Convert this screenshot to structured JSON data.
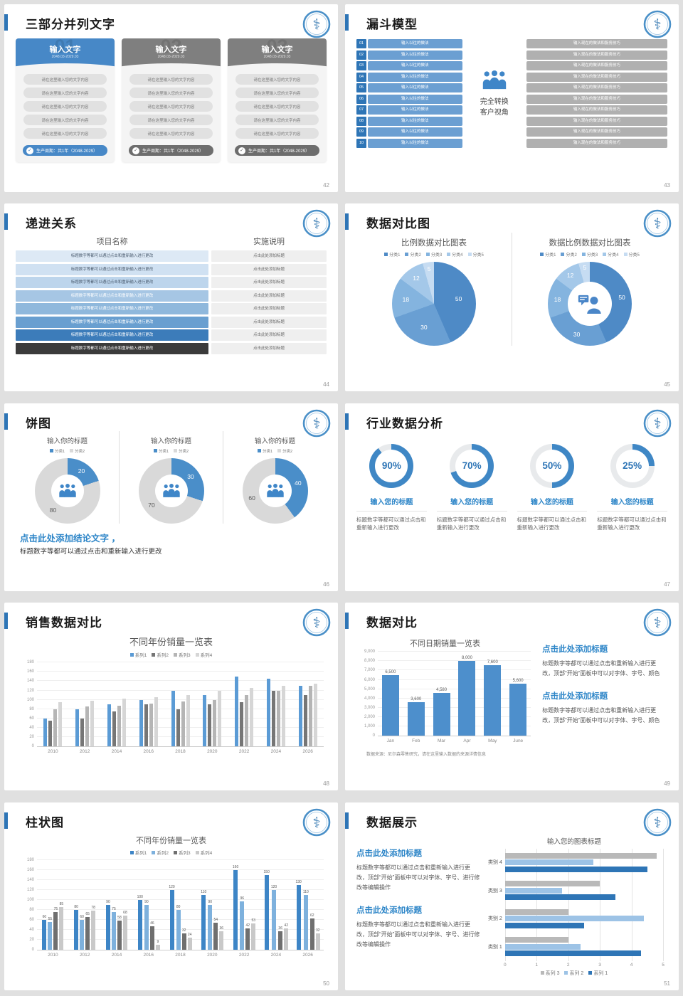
{
  "page": {
    "background": "#e0e0e0",
    "logo_icon": "medical-caduceus-emblem",
    "logo_symbol": "⚕",
    "accent_color": "#2e75b6"
  },
  "slides": {
    "s42": {
      "page_num": "42",
      "title": "三部分并列文字",
      "cards": [
        {
          "num": "01",
          "header": "输入文字",
          "date": "2048.03-2029.03",
          "accent": "#4788c7",
          "foot_accent": "#4788c7",
          "items": [
            "请在这里输入您的文字内容",
            "请在这里输入您的文字内容",
            "请在这里输入您的文字内容",
            "请在这里输入您的文字内容",
            "请在这里输入您的文字内容"
          ],
          "footer": "生产周期：共1年（2048-2029）"
        },
        {
          "num": "02",
          "header": "输入文字",
          "date": "2048.03-2029.03",
          "accent": "#7f7f7f",
          "foot_accent": "#6d6d6d",
          "items": [
            "请在这里输入您的文字内容",
            "请在这里输入您的文字内容",
            "请在这里输入您的文字内容",
            "请在这里输入您的文字内容",
            "请在这里输入您的文字内容"
          ],
          "footer": "生产周期：共1年（2048-2029）"
        },
        {
          "num": "03",
          "header": "输入文字",
          "date": "2048.03-2029.03",
          "accent": "#7f7f7f",
          "foot_accent": "#6d6d6d",
          "items": [
            "请在这里输入您的文字内容",
            "请在这里输入您的文字内容",
            "请在这里输入您的文字内容",
            "请在这里输入您的文字内容",
            "请在这里输入您的文字内容"
          ],
          "footer": "生产周期：共1年（2048-2029）"
        }
      ]
    },
    "s43": {
      "page_num": "43",
      "title": "漏斗模型",
      "left_items": [
        {
          "num": "01",
          "text": "输入以往的做法"
        },
        {
          "num": "02",
          "text": "输入以往的做法"
        },
        {
          "num": "03",
          "text": "输入以往的做法"
        },
        {
          "num": "04",
          "text": "输入以往的做法"
        },
        {
          "num": "05",
          "text": "输入以往的做法"
        },
        {
          "num": "06",
          "text": "输入以往的做法"
        },
        {
          "num": "07",
          "text": "输入以往的做法"
        },
        {
          "num": "08",
          "text": "输入以往的做法"
        },
        {
          "num": "09",
          "text": "输入以往的做法"
        },
        {
          "num": "10",
          "text": "输入以往的做法"
        }
      ],
      "center_line1": "完全转换",
      "center_line2": "客户视角",
      "center_icon": "people-group-icon",
      "right_items": [
        "输入现在的做法和服务技巧",
        "输入现在的做法和服务技巧",
        "输入现在的做法和服务技巧",
        "输入现在的做法和服务技巧",
        "输入现在的做法和服务技巧",
        "输入现在的做法和服务技巧",
        "输入现在的做法和服务技巧",
        "输入现在的做法和服务技巧",
        "输入现在的做法和服务技巧",
        "输入现在的做法和服务技巧"
      ]
    },
    "s44": {
      "page_num": "44",
      "title": "递进关系",
      "col1_header": "项目名称",
      "col2_header": "实施说明",
      "row_left_text": "标题数字等都可以通过点击和重新输入进行更改",
      "row_right_text": "点击此处添加标题",
      "row_colors": [
        "#dde9f5",
        "#d0e1f2",
        "#bdd5ec",
        "#a6c6e4",
        "#8fb8dc",
        "#699fd0",
        "#3c7cba",
        "#3b3b3b"
      ],
      "row_count": 8
    },
    "s45": {
      "page_num": "45",
      "title": "数据对比图",
      "center_icon": "customer-chat-icon"
    },
    "s46": {
      "page_num": "46",
      "title": "饼图",
      "conclusion_blue": "点击此处添加结论文字 ，",
      "conclusion_black": "标题数字等都可以通过点击和重新输入进行更改",
      "center_icon": "people-group-icon"
    },
    "s47": {
      "page_num": "47",
      "title": "行业数据分析",
      "items": [
        {
          "pct": "90%",
          "label": "输入您的标题",
          "desc": "标题数字等都可以通过点击和重新输入进行更改"
        },
        {
          "pct": "70%",
          "label": "输入您的标题",
          "desc": "标题数字等都可以通过点击和重新输入进行更改"
        },
        {
          "pct": "50%",
          "label": "输入您的标题",
          "desc": "标题数字等都可以通过点击和重新输入进行更改"
        },
        {
          "pct": "25%",
          "label": "输入您的标题",
          "desc": "标题数字等都可以通过点击和重新输入进行更改"
        }
      ]
    },
    "s48": {
      "page_num": "48",
      "title": "销售数据对比"
    },
    "s49": {
      "page_num": "49",
      "title": "数据对比",
      "source_note": "数据来源：尼尔森零售研究，请在这里输入数据的来源详情信息",
      "blocks": [
        {
          "heading": "点击此处添加标题",
          "body": "标题数字等都可以通过点击和重新输入进行更改，顶部“开始”面板中可以对字体、字号、颜色"
        },
        {
          "heading": "点击此处添加标题",
          "body": "标题数字等都可以通过点击和重新输入进行更改，顶部“开始”面板中可以对字体、字号、颜色"
        }
      ]
    },
    "s50": {
      "page_num": "50",
      "title": "柱状图"
    },
    "s51": {
      "page_num": "51",
      "title": "数据展示",
      "blocks": [
        {
          "heading": "点击此处添加标题",
          "body": "标题数字等都可以通过点击和重新输入进行更改，顶部“开始”面板中可以对字体、字号、进行修改等编辑操作"
        },
        {
          "heading": "点击此处添加标题",
          "body": "标题数字等都可以通过点击和重新输入进行更改，顶部“开始”面板中可以对字体、字号、进行修改等编辑操作"
        }
      ]
    }
  },
  "chart_data": [
    {
      "id": "s45-pie",
      "type": "pie",
      "title": "比例数据对比图表",
      "legend": [
        "分类1",
        "分类2",
        "分类3",
        "分类4",
        "分类5"
      ],
      "values": [
        50,
        30,
        18,
        12,
        5
      ],
      "colors": [
        "#4e8ac6",
        "#699fd3",
        "#84b4df",
        "#a4c8e9",
        "#c6dcf2"
      ],
      "legend_position": "top"
    },
    {
      "id": "s45-donut",
      "type": "pie",
      "subtype": "donut",
      "title": "数据比例数据对比图表",
      "legend": [
        "分类1",
        "分类2",
        "分类3",
        "分类4",
        "分类5"
      ],
      "values": [
        50,
        30,
        18,
        12,
        5
      ],
      "colors": [
        "#4e8ac6",
        "#699fd3",
        "#84b4df",
        "#a4c8e9",
        "#c6dcf2"
      ],
      "center_icon": "customer-chat-icon",
      "legend_position": "top"
    },
    {
      "id": "s46-donuts",
      "type": "pie",
      "subtype": "donut",
      "title": "输入你的标题",
      "legend": [
        "分类1",
        "分类2"
      ],
      "colors": [
        "#4a8ec9",
        "#d9d9d9"
      ],
      "charts": [
        [
          20,
          80
        ],
        [
          30,
          70
        ],
        [
          40,
          60
        ]
      ],
      "center_icon": "people-group-icon"
    },
    {
      "id": "s47-gauges",
      "type": "pie",
      "subtype": "gauge",
      "values": [
        90,
        70,
        50,
        25
      ],
      "unit": "%",
      "colors": [
        "#3f87c5",
        "#e8eaec"
      ]
    },
    {
      "id": "s48",
      "type": "bar",
      "title": "不同年份销量一览表",
      "categories": [
        "2010",
        "2012",
        "2014",
        "2016",
        "2018",
        "2020",
        "2022",
        "2024",
        "2026"
      ],
      "series": [
        {
          "name": "系列1",
          "color": "#5b9bd5",
          "values": [
            60,
            80,
            90,
            100,
            120,
            110,
            150,
            145,
            130
          ]
        },
        {
          "name": "系列2",
          "color": "#767676",
          "values": [
            55,
            60,
            75,
            90,
            80,
            90,
            95,
            120,
            110
          ]
        },
        {
          "name": "系列3",
          "color": "#b5b5b5",
          "values": [
            80,
            85,
            88,
            92,
            97,
            100,
            110,
            120,
            130
          ]
        },
        {
          "name": "系列4",
          "color": "#d6d6d6",
          "values": [
            95,
            98,
            102,
            105,
            110,
            120,
            125,
            130,
            135
          ]
        }
      ],
      "ylim": [
        0,
        180
      ],
      "ystep": 20,
      "grid": true,
      "legend_position": "top"
    },
    {
      "id": "s49",
      "type": "bar",
      "title": "不同日期销量一览表",
      "categories": [
        "Jan",
        "Feb",
        "Mar",
        "Apr",
        "May",
        "June"
      ],
      "series": [
        {
          "name": "销量",
          "color": "#4d8fcc",
          "values": [
            6500,
            3600,
            4580,
            8000,
            7600,
            5600
          ]
        }
      ],
      "data_labels": [
        "6,500",
        "3,600",
        "4,580",
        "8,000",
        "7,600",
        "5,600"
      ],
      "ylim": [
        0,
        9000
      ],
      "ystep": 1000,
      "grid": true
    },
    {
      "id": "s50",
      "type": "bar",
      "title": "不同年份销量一览表",
      "categories": [
        "2010",
        "2012",
        "2014",
        "2016",
        "2018",
        "2020",
        "2022",
        "2024",
        "2026"
      ],
      "series": [
        {
          "name": "系列1",
          "color": "#3d85c6",
          "values": [
            60,
            80,
            90,
            100,
            120,
            110,
            160,
            150,
            130
          ]
        },
        {
          "name": "系列2",
          "color": "#7eb1dd",
          "values": [
            55,
            60,
            75,
            90,
            80,
            90,
            96,
            120,
            110
          ]
        },
        {
          "name": "系列3",
          "color": "#6f6f6f",
          "values": [
            75,
            65,
            58,
            46,
            32,
            54,
            42,
            36,
            62
          ]
        },
        {
          "name": "系列4",
          "color": "#c9c9c9",
          "values": [
            85,
            78,
            68,
            9,
            24,
            36,
            53,
            42,
            32
          ]
        }
      ],
      "ylim": [
        0,
        180
      ],
      "ystep": 20,
      "grid": true,
      "show_labels": true,
      "legend_position": "top"
    },
    {
      "id": "s51",
      "type": "hbar",
      "title": "输入您的图表标题",
      "categories": [
        "类别 1",
        "类别 2",
        "类别 3",
        "类别 4"
      ],
      "series": [
        {
          "name": "系列 3",
          "color": "#b9b9b9",
          "values": [
            2.0,
            2.0,
            3.0,
            4.8
          ]
        },
        {
          "name": "系列 2",
          "color": "#9dc3e6",
          "values": [
            2.4,
            4.4,
            1.8,
            2.8
          ]
        },
        {
          "name": "系列 1",
          "color": "#2e75b6",
          "values": [
            4.3,
            2.5,
            3.5,
            4.5
          ]
        }
      ],
      "xlim": [
        0,
        5
      ],
      "xstep": 1,
      "grid": true,
      "legend_position": "bottom"
    }
  ]
}
